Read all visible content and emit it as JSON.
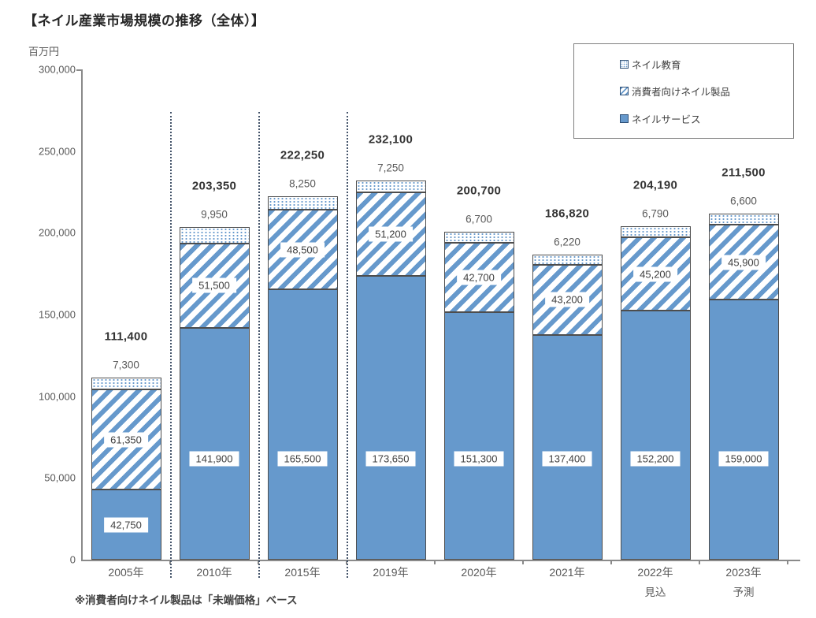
{
  "title": "【ネイル産業市場規模の推移（全体）】",
  "y_axis_unit": "百万円",
  "footnote": "※消費者向けネイル製品は「未端価格」ベース",
  "colors": {
    "bar_blue": "#6699cc",
    "segment_border": "#4d4d4d",
    "axis_line": "#8a8a8a",
    "separator_navy": "#44546a",
    "text_dark": "#404040",
    "text_gray": "#595959"
  },
  "legend": {
    "items": [
      {
        "label": "ネイル教育",
        "pattern": "dots",
        "swatch_icon": "dotted-square-swatch-icon"
      },
      {
        "label": "消費者向けネイル製品",
        "pattern": "hatch",
        "swatch_icon": "hatched-square-swatch-icon"
      },
      {
        "label": "ネイルサービス",
        "pattern": "solid",
        "swatch_icon": "solid-square-swatch-icon"
      }
    ]
  },
  "chart_data": {
    "type": "bar",
    "stacked": true,
    "title": "【ネイル産業市場規模の推移（全体）】",
    "ylabel": "百万円",
    "grid": false,
    "legend_position": "top-right",
    "y_axis": {
      "min": 0,
      "max": 300000,
      "step": 50000,
      "ticks": [
        300000,
        250000,
        200000,
        150000,
        100000,
        50000,
        0
      ]
    },
    "categories": [
      {
        "label": "2005年",
        "sublabel": ""
      },
      {
        "label": "2010年",
        "sublabel": ""
      },
      {
        "label": "2015年",
        "sublabel": ""
      },
      {
        "label": "2019年",
        "sublabel": ""
      },
      {
        "label": "2020年",
        "sublabel": ""
      },
      {
        "label": "2021年",
        "sublabel": ""
      },
      {
        "label": "2022年",
        "sublabel": "見込"
      },
      {
        "label": "2023年",
        "sublabel": "予測"
      }
    ],
    "series": [
      {
        "name": "ネイルサービス",
        "pattern": "solid",
        "values": [
          42750,
          141900,
          165500,
          173650,
          151300,
          137400,
          152200,
          159000
        ]
      },
      {
        "name": "消費者向けネイル製品",
        "pattern": "hatch",
        "values": [
          61350,
          51500,
          48500,
          51200,
          42700,
          43200,
          45200,
          45900
        ]
      },
      {
        "name": "ネイル教育",
        "pattern": "dots",
        "values": [
          7300,
          9950,
          8250,
          7250,
          6700,
          6220,
          6790,
          6600
        ]
      }
    ],
    "totals": [
      111400,
      203350,
      222250,
      232100,
      200700,
      186820,
      204190,
      211500
    ],
    "separators_after_category_index": [
      0,
      1,
      2
    ]
  }
}
